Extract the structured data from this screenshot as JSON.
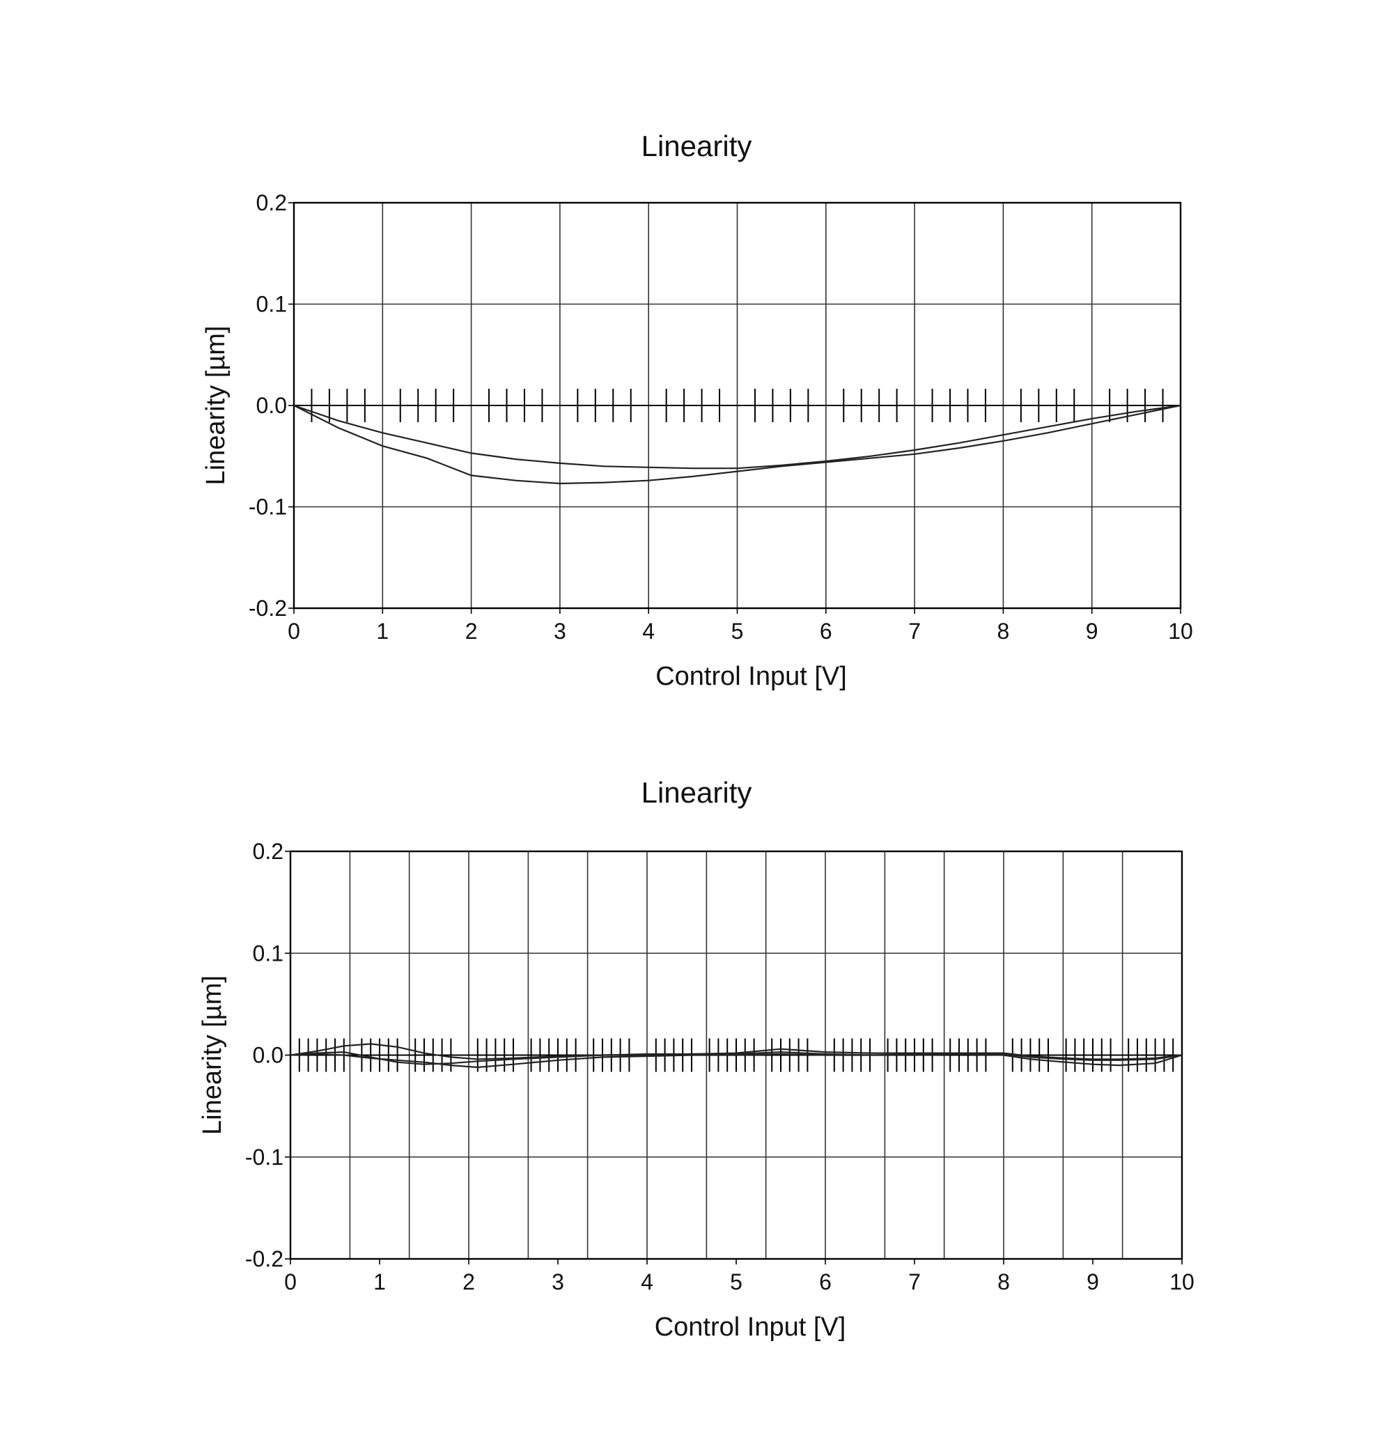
{
  "chart_data": [
    {
      "type": "line",
      "title": "Linearity",
      "xlabel": "Control Input [V]",
      "ylabel": "Linearity [µm]",
      "xlim": [
        0,
        10
      ],
      "ylim": [
        -0.2,
        0.2
      ],
      "x_ticks": [
        "0",
        "1",
        "2",
        "3",
        "4",
        "5",
        "6",
        "7",
        "8",
        "9",
        "10"
      ],
      "y_ticks": [
        "0.2",
        "0.1",
        "0.0",
        "-0.1",
        "-0.2"
      ],
      "grid": true,
      "vertical_grid": [
        0,
        1,
        2,
        3,
        4,
        5,
        6,
        7,
        8,
        9,
        10
      ],
      "sample_marks": [
        0.2,
        0.4,
        0.6,
        0.8,
        1.2,
        1.4,
        1.6,
        1.8,
        2.2,
        2.4,
        2.6,
        2.8,
        3.2,
        3.4,
        3.6,
        3.8,
        4.2,
        4.4,
        4.6,
        4.8,
        5.2,
        5.4,
        5.6,
        5.8,
        6.2,
        6.4,
        6.6,
        6.8,
        7.2,
        7.4,
        7.6,
        7.8,
        8.2,
        8.4,
        8.6,
        8.8,
        9.2,
        9.4,
        9.6,
        9.8
      ],
      "series": [
        {
          "x": [
            0,
            0.5,
            1,
            1.5,
            2,
            2.5,
            3,
            3.5,
            4,
            4.5,
            5,
            5.5,
            6,
            6.5,
            7,
            7.5,
            8,
            8.5,
            9,
            9.5,
            10
          ],
          "values": [
            0,
            -0.015,
            -0.027,
            -0.037,
            -0.047,
            -0.053,
            -0.057,
            -0.06,
            -0.061,
            -0.062,
            -0.062,
            -0.059,
            -0.055,
            -0.05,
            -0.044,
            -0.037,
            -0.029,
            -0.021,
            -0.013,
            -0.006,
            0
          ]
        },
        {
          "x": [
            0,
            0.5,
            1,
            1.5,
            2,
            2.5,
            3,
            3.5,
            4,
            4.5,
            5,
            5.5,
            6,
            6.5,
            7,
            7.5,
            8,
            8.5,
            9,
            9.5,
            10
          ],
          "values": [
            0,
            -0.022,
            -0.04,
            -0.052,
            -0.069,
            -0.074,
            -0.077,
            -0.076,
            -0.074,
            -0.07,
            -0.065,
            -0.06,
            -0.056,
            -0.052,
            -0.048,
            -0.042,
            -0.035,
            -0.027,
            -0.018,
            -0.009,
            0
          ]
        }
      ]
    },
    {
      "type": "line",
      "title": "Linearity",
      "xlabel": "Control Input [V]",
      "ylabel": "Linearity [µm]",
      "xlim": [
        0,
        10
      ],
      "ylim": [
        -0.2,
        0.2
      ],
      "x_ticks": [
        "0",
        "1",
        "2",
        "3",
        "4",
        "5",
        "6",
        "7",
        "8",
        "9",
        "10"
      ],
      "y_ticks": [
        "0.2",
        "0.1",
        "0.0",
        "-0.1",
        "-0.2"
      ],
      "grid": true,
      "vertical_grid": [
        0,
        0.667,
        1.333,
        2,
        2.667,
        3.333,
        4,
        4.667,
        5.333,
        6,
        6.667,
        7.333,
        8,
        8.667,
        9.333,
        10
      ],
      "sample_marks": [
        0.1,
        0.2,
        0.3,
        0.4,
        0.5,
        0.6,
        0.8,
        0.9,
        1.0,
        1.1,
        1.2,
        1.4,
        1.5,
        1.6,
        1.7,
        1.8,
        2.1,
        2.2,
        2.3,
        2.4,
        2.5,
        2.7,
        2.8,
        2.9,
        3.0,
        3.1,
        3.2,
        3.4,
        3.5,
        3.6,
        3.7,
        3.8,
        4.1,
        4.2,
        4.3,
        4.4,
        4.5,
        4.7,
        4.8,
        4.9,
        5.0,
        5.1,
        5.2,
        5.4,
        5.5,
        5.6,
        5.7,
        5.8,
        6.1,
        6.2,
        6.3,
        6.4,
        6.5,
        6.7,
        6.8,
        6.9,
        7.0,
        7.1,
        7.2,
        7.4,
        7.5,
        7.6,
        7.7,
        7.8,
        8.1,
        8.2,
        8.3,
        8.4,
        8.5,
        8.7,
        8.8,
        8.9,
        9.0,
        9.1,
        9.2,
        9.4,
        9.5,
        9.6,
        9.7,
        9.8,
        9.9
      ],
      "series": [
        {
          "x": [
            0,
            0.3,
            0.6,
            0.9,
            1.2,
            1.5,
            1.8,
            2.1,
            2.5,
            3,
            3.5,
            4,
            4.5,
            5,
            5.5,
            6,
            6.5,
            7,
            7.5,
            8,
            8.3,
            8.7,
            9,
            9.3,
            9.7,
            10
          ],
          "values": [
            0,
            0.004,
            0.009,
            0.011,
            0.008,
            0.002,
            -0.002,
            -0.004,
            -0.003,
            -0.001,
            0.0,
            0.001,
            0.001,
            0.001,
            0.003,
            0.001,
            0.0,
            0.001,
            0.001,
            0.001,
            -0.002,
            -0.004,
            -0.005,
            -0.005,
            -0.004,
            0
          ]
        },
        {
          "x": [
            0,
            0.3,
            0.6,
            0.9,
            1.2,
            1.5,
            1.8,
            2.1,
            2.5,
            3,
            3.5,
            4,
            4.5,
            5,
            5.5,
            6,
            6.5,
            7,
            7.5,
            8,
            8.3,
            8.7,
            9,
            9.3,
            9.7,
            10
          ],
          "values": [
            0,
            0.002,
            0.003,
            -0.002,
            -0.007,
            -0.009,
            -0.008,
            -0.006,
            -0.004,
            -0.002,
            0.0,
            0.0,
            0.001,
            0.002,
            0.006,
            0.003,
            0.002,
            0.002,
            0.002,
            0.002,
            -0.001,
            -0.003,
            -0.004,
            -0.004,
            -0.003,
            0
          ]
        },
        {
          "x": [
            0,
            0.3,
            0.6,
            0.9,
            1.2,
            1.5,
            1.8,
            2.1,
            2.5,
            3,
            3.5,
            4,
            4.5,
            5,
            5.5,
            6,
            6.5,
            7,
            7.5,
            8,
            8.3,
            8.7,
            9,
            9.3,
            9.7,
            10
          ],
          "values": [
            0,
            0.001,
            0.0,
            -0.003,
            -0.005,
            -0.007,
            -0.01,
            -0.012,
            -0.009,
            -0.005,
            -0.002,
            -0.001,
            0.0,
            0.0,
            0.001,
            0.0,
            0.0,
            0.0,
            0.001,
            0.0,
            -0.004,
            -0.007,
            -0.009,
            -0.01,
            -0.008,
            0
          ]
        }
      ]
    }
  ]
}
